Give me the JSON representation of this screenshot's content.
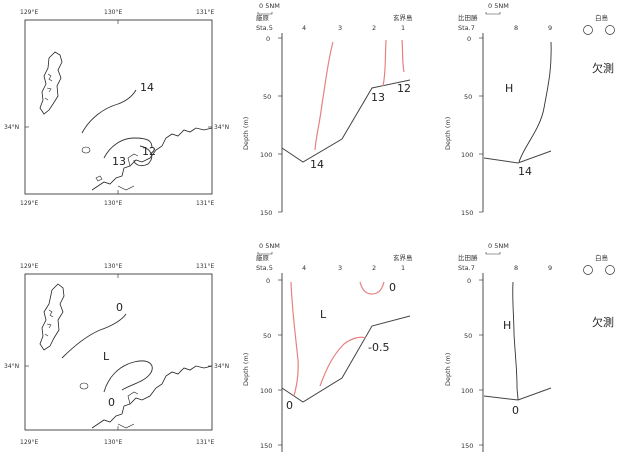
{
  "maps": [
    {
      "lon_labels": [
        "129°E",
        "130°E",
        "131°E"
      ],
      "lat_label": "34°N",
      "contours": [
        "14",
        "13",
        "12"
      ]
    },
    {
      "lon_labels": [
        "129°E",
        "130°E",
        "131°E"
      ],
      "lat_label": "34°N",
      "contours": [
        "0",
        "L",
        "0"
      ]
    }
  ],
  "sections": {
    "scale": "0 5NM",
    "left_station": "Sta.5",
    "right_station": "Sta.7",
    "ylabel": "Depth (m)",
    "yticks": [
      "0",
      "50",
      "100",
      "150"
    ],
    "mid_xticks": [
      "4",
      "3",
      "2",
      "1"
    ],
    "right_xticks": [
      "8",
      "9"
    ],
    "place_left": "厳原",
    "place_right": "玄界島",
    "place_hida": "比田勝",
    "place_shira": "白島",
    "missing": "欠測",
    "top_mid_labels": [
      "14",
      "13",
      "12"
    ],
    "top_right_labels": [
      "H",
      "14"
    ],
    "bot_mid_labels": [
      "L",
      "0",
      "-0.5",
      "0"
    ],
    "bot_right_labels": [
      "H",
      "0"
    ]
  }
}
